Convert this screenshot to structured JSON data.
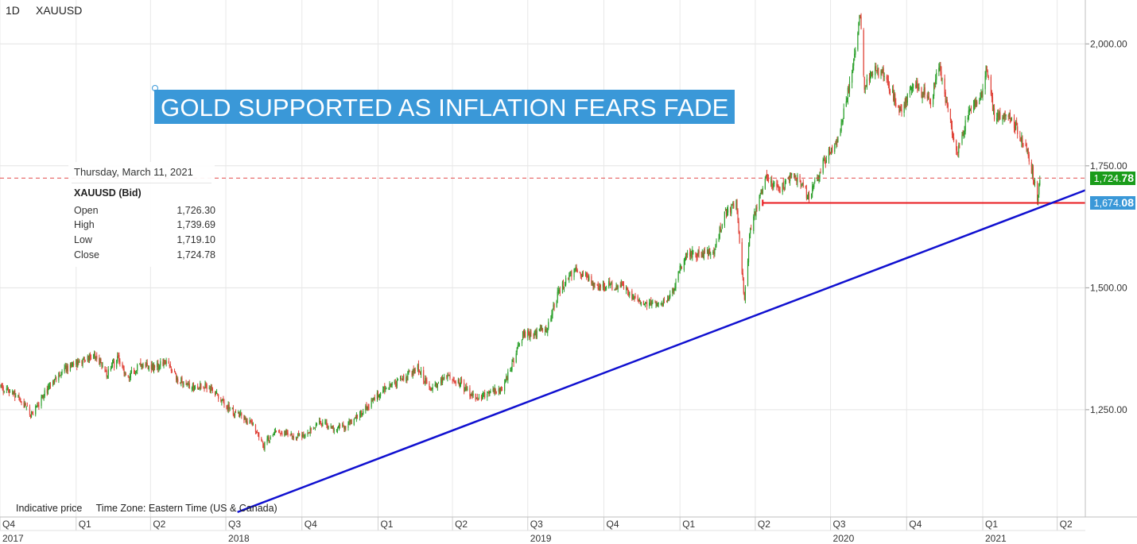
{
  "header": {
    "interval": "1D",
    "symbol": "XAUUSD"
  },
  "banner": {
    "text": "GOLD SUPPORTED AS INFLATION FEARS FADE",
    "color": "#3a98d8"
  },
  "tooltip": {
    "date": "Thursday, March 11, 2021",
    "symbol": "XAUUSD (Bid)",
    "rows": [
      {
        "label": "Open",
        "value": "1,726.30"
      },
      {
        "label": "High",
        "value": "1,739.69"
      },
      {
        "label": "Low",
        "value": "1,719.10"
      },
      {
        "label": "Close",
        "value": "1,724.78"
      }
    ]
  },
  "footer": {
    "indicative": "Indicative price",
    "timezone": "Time Zone: Eastern Time (US & Canada)"
  },
  "price_tags": {
    "last": {
      "int": "1,724.",
      "dec": "78",
      "color": "#1a9c1a"
    },
    "support": {
      "int": "1,674.",
      "dec": "08",
      "color": "#3a98d8"
    }
  },
  "chart_data": {
    "type": "candlestick",
    "symbol": "XAUUSD",
    "interval": "1D",
    "ylim": [
      1030,
      2090
    ],
    "y_ticks": [
      {
        "value": 1250,
        "label": "1,250.00"
      },
      {
        "value": 1500,
        "label": "1,500.00"
      },
      {
        "value": 1750,
        "label": "1,750.00"
      },
      {
        "value": 2000,
        "label": "2,000.00"
      }
    ],
    "x_range": [
      "2017-10-01",
      "2021-05-05"
    ],
    "quarter_ticks": [
      {
        "date": "2017-10-01",
        "label": "Q4"
      },
      {
        "date": "2018-01-01",
        "label": "Q1"
      },
      {
        "date": "2018-04-01",
        "label": "Q2"
      },
      {
        "date": "2018-07-01",
        "label": "Q3"
      },
      {
        "date": "2018-10-01",
        "label": "Q4"
      },
      {
        "date": "2019-01-01",
        "label": "Q1"
      },
      {
        "date": "2019-04-01",
        "label": "Q2"
      },
      {
        "date": "2019-07-01",
        "label": "Q3"
      },
      {
        "date": "2019-10-01",
        "label": "Q4"
      },
      {
        "date": "2020-01-01",
        "label": "Q1"
      },
      {
        "date": "2020-04-01",
        "label": "Q2"
      },
      {
        "date": "2020-07-01",
        "label": "Q3"
      },
      {
        "date": "2020-10-01",
        "label": "Q4"
      },
      {
        "date": "2021-01-01",
        "label": "Q1"
      },
      {
        "date": "2021-04-01",
        "label": "Q2"
      }
    ],
    "year_labels": [
      {
        "date": "2017-10-01",
        "label": "2017"
      },
      {
        "date": "2018-07-01",
        "label": "2018"
      },
      {
        "date": "2019-07-01",
        "label": "2019"
      },
      {
        "date": "2020-07-01",
        "label": "2020"
      },
      {
        "date": "2021-01-01",
        "label": "2021"
      }
    ],
    "price_path": [
      [
        "2017-10-01",
        1295
      ],
      [
        "2017-10-20",
        1282
      ],
      [
        "2017-11-08",
        1240
      ],
      [
        "2017-11-25",
        1285
      ],
      [
        "2017-12-10",
        1325
      ],
      [
        "2018-01-01",
        1345
      ],
      [
        "2018-01-25",
        1360
      ],
      [
        "2018-02-08",
        1322
      ],
      [
        "2018-02-20",
        1355
      ],
      [
        "2018-03-05",
        1318
      ],
      [
        "2018-03-20",
        1342
      ],
      [
        "2018-04-05",
        1335
      ],
      [
        "2018-04-18",
        1348
      ],
      [
        "2018-05-05",
        1312
      ],
      [
        "2018-05-20",
        1295
      ],
      [
        "2018-06-05",
        1300
      ],
      [
        "2018-06-20",
        1282
      ],
      [
        "2018-07-05",
        1252
      ],
      [
        "2018-07-20",
        1235
      ],
      [
        "2018-08-05",
        1215
      ],
      [
        "2018-08-16",
        1175
      ],
      [
        "2018-08-28",
        1205
      ],
      [
        "2018-09-15",
        1200
      ],
      [
        "2018-10-05",
        1192
      ],
      [
        "2018-10-20",
        1225
      ],
      [
        "2018-11-10",
        1210
      ],
      [
        "2018-12-01",
        1225
      ],
      [
        "2018-12-20",
        1258
      ],
      [
        "2019-01-05",
        1288
      ],
      [
        "2019-01-25",
        1305
      ],
      [
        "2019-02-18",
        1335
      ],
      [
        "2019-03-05",
        1292
      ],
      [
        "2019-03-25",
        1318
      ],
      [
        "2019-04-10",
        1305
      ],
      [
        "2019-04-25",
        1275
      ],
      [
        "2019-05-15",
        1282
      ],
      [
        "2019-05-30",
        1292
      ],
      [
        "2019-06-10",
        1330
      ],
      [
        "2019-06-25",
        1405
      ],
      [
        "2019-07-10",
        1405
      ],
      [
        "2019-07-25",
        1418
      ],
      [
        "2019-08-08",
        1495
      ],
      [
        "2019-08-25",
        1535
      ],
      [
        "2019-09-05",
        1530
      ],
      [
        "2019-09-20",
        1502
      ],
      [
        "2019-10-05",
        1505
      ],
      [
        "2019-10-25",
        1500
      ],
      [
        "2019-11-15",
        1470
      ],
      [
        "2019-12-05",
        1465
      ],
      [
        "2019-12-20",
        1482
      ],
      [
        "2020-01-08",
        1570
      ],
      [
        "2020-01-25",
        1570
      ],
      [
        "2020-02-10",
        1572
      ],
      [
        "2020-02-24",
        1648
      ],
      [
        "2020-03-09",
        1675
      ],
      [
        "2020-03-19",
        1475
      ],
      [
        "2020-03-26",
        1622
      ],
      [
        "2020-04-14",
        1725
      ],
      [
        "2020-05-01",
        1700
      ],
      [
        "2020-05-18",
        1735
      ],
      [
        "2020-06-05",
        1685
      ],
      [
        "2020-06-25",
        1765
      ],
      [
        "2020-07-10",
        1800
      ],
      [
        "2020-07-27",
        1940
      ],
      [
        "2020-08-06",
        2065
      ],
      [
        "2020-08-11",
        1912
      ],
      [
        "2020-08-20",
        1945
      ],
      [
        "2020-09-05",
        1935
      ],
      [
        "2020-09-24",
        1855
      ],
      [
        "2020-10-10",
        1922
      ],
      [
        "2020-10-30",
        1880
      ],
      [
        "2020-11-09",
        1952
      ],
      [
        "2020-11-30",
        1778
      ],
      [
        "2020-12-15",
        1855
      ],
      [
        "2020-12-31",
        1895
      ],
      [
        "2021-01-06",
        1955
      ],
      [
        "2021-01-15",
        1842
      ],
      [
        "2021-01-30",
        1862
      ],
      [
        "2021-02-12",
        1822
      ],
      [
        "2021-02-25",
        1775
      ],
      [
        "2021-03-08",
        1685
      ],
      [
        "2021-03-11",
        1725
      ]
    ],
    "reference_lines": [
      {
        "type": "horizontal",
        "value": 1724.78,
        "style": "dashed",
        "color": "#e34a4a"
      },
      {
        "type": "horizontal",
        "value": 1674.08,
        "from": "2020-04-10",
        "style": "solid",
        "color": "#e8191e"
      },
      {
        "type": "trendline",
        "from": [
          "2018-07-15",
          1040
        ],
        "to": [
          "2021-05-05",
          1700
        ],
        "color": "#1010d0"
      }
    ],
    "bull_color": "#2ca02c",
    "bear_color": "#e0443a"
  }
}
